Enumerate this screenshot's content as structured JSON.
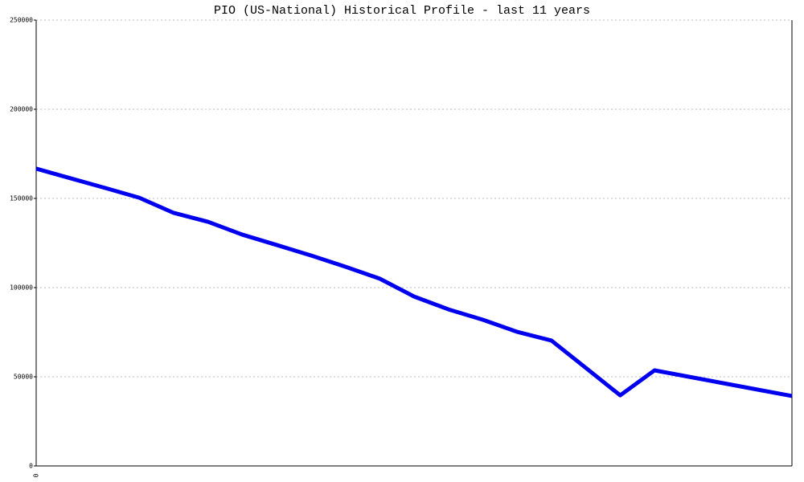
{
  "chart_data": {
    "type": "line",
    "title": "PIO (US-National) Historical Profile - last 11 years",
    "categories": [
      "0",
      null,
      null,
      null,
      null,
      null,
      null,
      null,
      null,
      null,
      null,
      null,
      null,
      null,
      null,
      null,
      null,
      null,
      null,
      null,
      null,
      null,
      null
    ],
    "series": [
      {
        "name": "PIO",
        "color": "#0000ee",
        "values": [
          166700,
          161300,
          155900,
          150400,
          141900,
          136900,
          129700,
          123900,
          118000,
          111700,
          105000,
          95000,
          87800,
          82000,
          75200,
          70300,
          55000,
          39600,
          53600,
          50000,
          46400,
          42800,
          39200
        ]
      }
    ],
    "ylim": [
      0,
      250000
    ],
    "yticks": [
      0,
      50000,
      100000,
      150000,
      200000,
      250000
    ],
    "grid": true
  }
}
